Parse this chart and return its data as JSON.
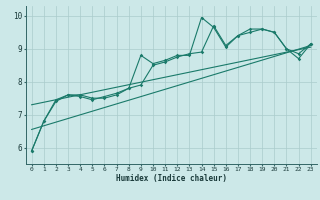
{
  "title": "",
  "xlabel": "Humidex (Indice chaleur)",
  "ylabel": "",
  "bg_color": "#cce8e8",
  "grid_color": "#aacccc",
  "line_color": "#1a7a6a",
  "xlim": [
    -0.5,
    23.5
  ],
  "ylim": [
    5.5,
    10.3
  ],
  "xticks": [
    0,
    1,
    2,
    3,
    4,
    5,
    6,
    7,
    8,
    9,
    10,
    11,
    12,
    13,
    14,
    15,
    16,
    17,
    18,
    19,
    20,
    21,
    22,
    23
  ],
  "yticks": [
    6,
    7,
    8,
    9,
    10
  ],
  "series1": [
    [
      0,
      5.9
    ],
    [
      1,
      6.8
    ],
    [
      2,
      7.4
    ],
    [
      3,
      7.6
    ],
    [
      4,
      7.6
    ],
    [
      5,
      7.5
    ],
    [
      6,
      7.5
    ],
    [
      7,
      7.6
    ],
    [
      8,
      7.8
    ],
    [
      9,
      7.9
    ],
    [
      10,
      8.5
    ],
    [
      11,
      8.6
    ],
    [
      12,
      8.75
    ],
    [
      13,
      8.85
    ],
    [
      14,
      8.9
    ],
    [
      15,
      9.7
    ],
    [
      16,
      9.1
    ],
    [
      17,
      9.4
    ],
    [
      18,
      9.5
    ],
    [
      19,
      9.6
    ],
    [
      20,
      9.5
    ],
    [
      21,
      9.0
    ],
    [
      22,
      8.85
    ],
    [
      23,
      9.15
    ]
  ],
  "series2": [
    [
      0,
      5.9
    ],
    [
      1,
      6.8
    ],
    [
      2,
      7.45
    ],
    [
      3,
      7.6
    ],
    [
      4,
      7.55
    ],
    [
      5,
      7.45
    ],
    [
      6,
      7.55
    ],
    [
      7,
      7.65
    ],
    [
      8,
      7.8
    ],
    [
      9,
      8.8
    ],
    [
      10,
      8.55
    ],
    [
      11,
      8.65
    ],
    [
      12,
      8.8
    ],
    [
      13,
      8.8
    ],
    [
      14,
      9.95
    ],
    [
      15,
      9.65
    ],
    [
      16,
      9.05
    ],
    [
      17,
      9.4
    ],
    [
      18,
      9.6
    ],
    [
      19,
      9.6
    ],
    [
      20,
      9.5
    ],
    [
      21,
      9.0
    ],
    [
      22,
      8.7
    ],
    [
      23,
      9.15
    ]
  ],
  "line_straight1": [
    [
      0,
      6.55
    ],
    [
      23,
      9.1
    ]
  ],
  "line_straight2": [
    [
      0,
      7.3
    ],
    [
      23,
      9.05
    ]
  ]
}
